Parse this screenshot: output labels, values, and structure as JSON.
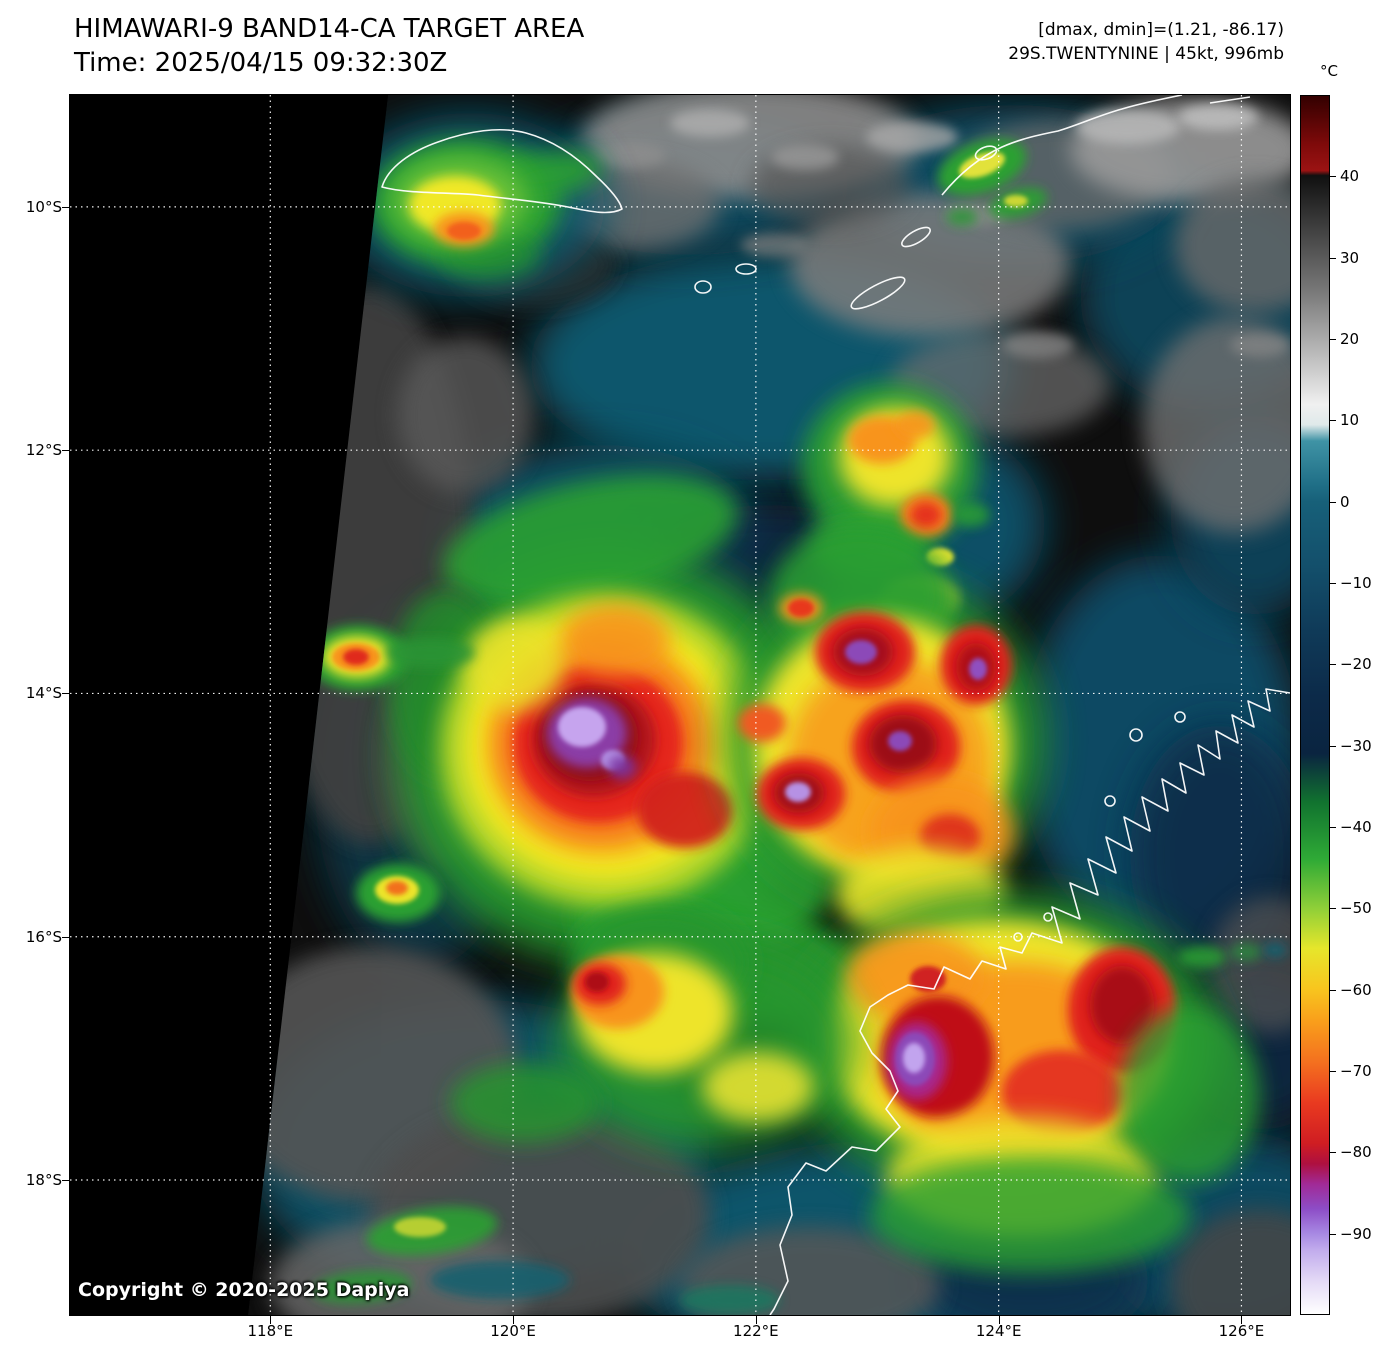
{
  "header": {
    "title": "HIMAWARI-9 BAND14-CA TARGET AREA",
    "time_line": "Time: 2025/04/15 09:32:30Z",
    "dmax_dmin": "[dmax, dmin]=(1.21, -86.17)",
    "storm_info": "29S.TWENTYNINE | 45kt, 996mb"
  },
  "copyright": "Copyright © 2020-2025 Dapiya",
  "axes": {
    "lat": {
      "min": 9.08,
      "max": 19.11,
      "ticks": [
        {
          "label": "10°S",
          "value": 10
        },
        {
          "label": "12°S",
          "value": 12
        },
        {
          "label": "14°S",
          "value": 14
        },
        {
          "label": "16°S",
          "value": 16
        },
        {
          "label": "18°S",
          "value": 18
        }
      ]
    },
    "lon": {
      "min": 116.35,
      "max": 126.4,
      "ticks": [
        {
          "label": "118°E",
          "value": 118
        },
        {
          "label": "120°E",
          "value": 120
        },
        {
          "label": "122°E",
          "value": 122
        },
        {
          "label": "124°E",
          "value": 124
        },
        {
          "label": "126°E",
          "value": 126
        }
      ]
    }
  },
  "colorbar": {
    "unit": "°C",
    "top_value": 50,
    "bottom_value": -100,
    "ticks": [
      {
        "label": "40",
        "value": 40
      },
      {
        "label": "30",
        "value": 30
      },
      {
        "label": "20",
        "value": 20
      },
      {
        "label": "10",
        "value": 10
      },
      {
        "label": "0",
        "value": 0
      },
      {
        "label": "−10",
        "value": -10
      },
      {
        "label": "−20",
        "value": -20
      },
      {
        "label": "−30",
        "value": -30
      },
      {
        "label": "−40",
        "value": -40
      },
      {
        "label": "−50",
        "value": -50
      },
      {
        "label": "−60",
        "value": -60
      },
      {
        "label": "−70",
        "value": -70
      },
      {
        "label": "−80",
        "value": -80
      },
      {
        "label": "−90",
        "value": -90
      }
    ],
    "stops": [
      {
        "value": 50,
        "color": "#330000"
      },
      {
        "value": 44,
        "color": "#7f0a0a"
      },
      {
        "value": 40.8,
        "color": "#9b1313"
      },
      {
        "value": 40.2,
        "color": "#101010"
      },
      {
        "value": 26,
        "color": "#787878"
      },
      {
        "value": 12,
        "color": "#f0f0f0"
      },
      {
        "value": 9.5,
        "color": "#dfe9ea"
      },
      {
        "value": 7.5,
        "color": "#3f93a5"
      },
      {
        "value": 2,
        "color": "#1f6e86"
      },
      {
        "value": 0,
        "color": "#176079"
      },
      {
        "value": -8,
        "color": "#134f6b"
      },
      {
        "value": -16,
        "color": "#0f3a58"
      },
      {
        "value": -24,
        "color": "#0c2a49"
      },
      {
        "value": -31,
        "color": "#0a2440"
      },
      {
        "value": -37,
        "color": "#11732f"
      },
      {
        "value": -44,
        "color": "#2faa36"
      },
      {
        "value": -50,
        "color": "#8fcf38"
      },
      {
        "value": -55,
        "color": "#e6e62b"
      },
      {
        "value": -60,
        "color": "#f8c51e"
      },
      {
        "value": -64,
        "color": "#f99e1b"
      },
      {
        "value": -69,
        "color": "#f4701f"
      },
      {
        "value": -74,
        "color": "#e93a20"
      },
      {
        "value": -79,
        "color": "#cf1d22"
      },
      {
        "value": -81.5,
        "color": "#ae1040"
      },
      {
        "value": -84,
        "color": "#a12a96"
      },
      {
        "value": -87,
        "color": "#8d4cc6"
      },
      {
        "value": -90,
        "color": "#a687e2"
      },
      {
        "value": -92,
        "color": "#c0aaec"
      },
      {
        "value": -96,
        "color": "#e4daf6"
      },
      {
        "value": -100,
        "color": "#ffffff"
      }
    ]
  }
}
